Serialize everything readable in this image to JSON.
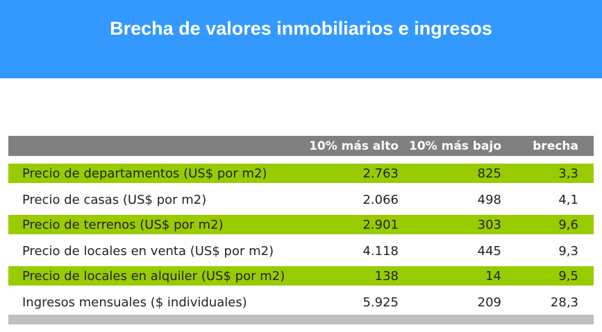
{
  "title": "Brecha de valores inmobiliarios e ingresos",
  "colors": {
    "header": "#3399ff",
    "table_header": "#808080",
    "highlight": "#99cc00",
    "footer": "#bfbfbf"
  },
  "chart_data": {
    "type": "table",
    "columns": [
      "",
      "10% más alto",
      "10% más bajo",
      "brecha"
    ],
    "rows": [
      {
        "label": "Precio de departamentos (US$ por m2)",
        "high": "2.763",
        "low": "825",
        "gap": "3,3"
      },
      {
        "label": "Precio de casas (US$ por m2)",
        "high": "2.066",
        "low": "498",
        "gap": "4,1"
      },
      {
        "label": "Precio de terrenos (US$ por m2)",
        "high": "2.901",
        "low": "303",
        "gap": "9,6"
      },
      {
        "label": "Precio de locales en venta (US$ por m2)",
        "high": "4.118",
        "low": "445",
        "gap": "9,3"
      },
      {
        "label": "Precio de locales en alquiler (US$ por m2)",
        "high": "138",
        "low": "14",
        "gap": "9,5"
      },
      {
        "label": "Ingresos mensuales ($ individuales)",
        "high": "5.925",
        "low": "209",
        "gap": "28,3"
      }
    ]
  }
}
